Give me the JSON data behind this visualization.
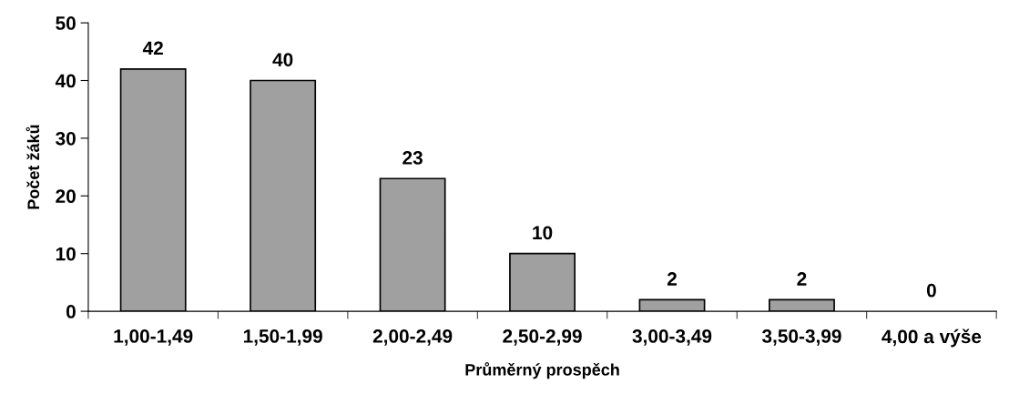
{
  "chart_data": {
    "type": "bar",
    "xlabel": "Průměrný prospěch",
    "ylabel": "Počet žáků",
    "categories": [
      "1,00-1,49",
      "1,50-1,99",
      "2,00-2,49",
      "2,50-2,99",
      "3,00-3,49",
      "3,50-3,99",
      "4,00 a výše"
    ],
    "values": [
      42,
      40,
      23,
      10,
      2,
      2,
      0
    ],
    "color": "#a0a0a0",
    "ylim": [
      0,
      50
    ],
    "yticks": [
      0,
      10,
      20,
      30,
      40,
      50
    ],
    "grid": false,
    "data_labels": true,
    "legend": false
  }
}
